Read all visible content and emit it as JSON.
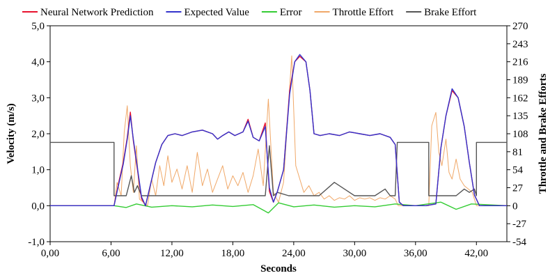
{
  "chart_data": {
    "type": "line",
    "xlabel": "Seconds",
    "ylabel": "Velocity (m/s)",
    "y2label": "Throttle and Brake Efforts",
    "xlim": [
      0,
      45
    ],
    "ylim": [
      -1,
      5
    ],
    "y2lim": [
      -54,
      270
    ],
    "x_ticks": [
      0,
      6,
      12,
      18,
      24,
      30,
      36,
      42
    ],
    "x_tick_labels": [
      "0,00",
      "6,00",
      "12,00",
      "18,00",
      "24,00",
      "30,00",
      "36,00",
      "42,00"
    ],
    "y_ticks": [
      -1,
      0,
      1,
      2,
      3,
      4,
      5
    ],
    "y_tick_labels": [
      "-1,0",
      "0,0",
      "1,0",
      "2,0",
      "3,0",
      "4,0",
      "5,0"
    ],
    "y2_ticks": [
      -54,
      -27,
      0,
      27,
      54,
      81,
      108,
      135,
      162,
      189,
      216,
      243,
      270
    ],
    "y2_tick_labels": [
      "-54",
      "-27",
      "0",
      "27",
      "54",
      "81",
      "108",
      "135",
      "162",
      "189",
      "216",
      "243",
      "270"
    ],
    "grid": false,
    "legend_position": "top",
    "series": [
      {
        "name": "Neural Network Prediction",
        "axis": "left",
        "color": "#e8112d",
        "x": [
          0,
          6.3,
          6.8,
          7.2,
          7.6,
          7.9,
          8.2,
          8.6,
          9.0,
          9.4,
          9.9,
          10.4,
          11.0,
          11.6,
          12.3,
          13.0,
          14.0,
          15.0,
          16.0,
          16.5,
          17.0,
          17.6,
          18.2,
          19.0,
          19.5,
          20.0,
          20.6,
          21.2,
          21.6,
          22.0,
          22.4,
          23.0,
          23.6,
          24.1,
          24.6,
          25.2,
          25.6,
          26.0,
          26.6,
          27.5,
          28.5,
          29.5,
          30.5,
          31.5,
          32.5,
          33.5,
          34.0,
          34.4,
          34.8,
          36.0,
          37.0,
          38.0,
          38.5,
          39.0,
          39.6,
          40.2,
          40.8,
          41.3,
          41.8,
          42.3,
          45.0
        ],
        "y": [
          0,
          0.0,
          0.7,
          1.2,
          1.9,
          2.6,
          1.8,
          1.0,
          0.2,
          0.0,
          0.6,
          1.2,
          1.7,
          1.95,
          2.0,
          1.95,
          2.05,
          2.1,
          2.0,
          1.85,
          1.95,
          2.05,
          1.95,
          2.05,
          2.4,
          1.9,
          1.8,
          2.3,
          0.4,
          0.1,
          0.4,
          1.0,
          3.2,
          4.0,
          4.15,
          4.0,
          3.2,
          2.0,
          1.95,
          2.0,
          1.95,
          2.05,
          2.0,
          1.95,
          2.0,
          1.9,
          1.7,
          0.1,
          0.0,
          0.0,
          0.0,
          0.05,
          1.6,
          2.5,
          3.2,
          3.0,
          2.2,
          1.2,
          0.3,
          0.0,
          0.0
        ]
      },
      {
        "name": "Expected Value",
        "axis": "left",
        "color": "#3333cc",
        "x": [
          0,
          6.3,
          6.8,
          7.2,
          7.6,
          7.9,
          8.2,
          8.6,
          9.0,
          9.4,
          9.9,
          10.4,
          11.0,
          11.6,
          12.3,
          13.0,
          14.0,
          15.0,
          16.0,
          16.5,
          17.0,
          17.6,
          18.2,
          19.0,
          19.5,
          20.0,
          20.6,
          21.2,
          21.6,
          22.0,
          22.4,
          23.0,
          23.6,
          24.1,
          24.6,
          25.2,
          25.6,
          26.0,
          26.6,
          27.5,
          28.5,
          29.5,
          30.5,
          31.5,
          32.5,
          33.5,
          34.0,
          34.4,
          34.8,
          36.0,
          37.0,
          38.0,
          38.5,
          39.0,
          39.6,
          40.2,
          40.8,
          41.3,
          41.8,
          42.3,
          45.0
        ],
        "y": [
          0,
          0.0,
          0.65,
          1.15,
          1.85,
          2.5,
          1.85,
          1.05,
          0.25,
          0.0,
          0.6,
          1.2,
          1.7,
          1.95,
          2.0,
          1.95,
          2.05,
          2.1,
          2.0,
          1.85,
          1.95,
          2.05,
          1.95,
          2.05,
          2.35,
          1.9,
          1.8,
          2.2,
          0.5,
          0.1,
          0.4,
          1.0,
          3.1,
          4.0,
          4.2,
          4.0,
          3.2,
          2.0,
          1.95,
          2.0,
          1.95,
          2.05,
          2.0,
          1.95,
          2.0,
          1.9,
          1.7,
          0.1,
          0.0,
          0.0,
          0.0,
          0.05,
          1.6,
          2.5,
          3.25,
          3.0,
          2.2,
          1.2,
          0.3,
          0.0,
          0.0
        ]
      },
      {
        "name": "Error",
        "axis": "left",
        "color": "#33cc33",
        "x": [
          0,
          6.3,
          7.5,
          8.5,
          10,
          12,
          14,
          16,
          18,
          20,
          21.5,
          22.5,
          24,
          26,
          28,
          30,
          32,
          34,
          36,
          38.5,
          40,
          41.5,
          45
        ],
        "y": [
          0,
          0,
          -0.05,
          0.05,
          -0.04,
          0.0,
          -0.03,
          0.02,
          -0.02,
          0.03,
          -0.2,
          0.08,
          -0.03,
          0.02,
          -0.04,
          0.0,
          -0.03,
          0.05,
          0.0,
          0.1,
          -0.1,
          0.05,
          0
        ]
      },
      {
        "name": "Throttle Effort",
        "axis": "right",
        "color": "#f0a868",
        "x": [
          0,
          6.3,
          6.6,
          7.0,
          7.3,
          7.6,
          7.9,
          8.2,
          8.5,
          8.8,
          9.2,
          9.6,
          10.0,
          10.4,
          10.8,
          11.2,
          11.6,
          12.0,
          12.5,
          13.0,
          13.5,
          14.0,
          14.5,
          15.0,
          15.5,
          16.0,
          16.5,
          17.0,
          17.5,
          18.0,
          18.5,
          19.0,
          19.5,
          20.0,
          20.5,
          21.0,
          21.5,
          22.0,
          22.5,
          23.0,
          23.4,
          23.8,
          24.2,
          24.6,
          25.0,
          25.5,
          26.0,
          26.5,
          27.0,
          27.5,
          28.0,
          28.5,
          29.0,
          29.5,
          30.0,
          30.5,
          31.0,
          31.5,
          32.0,
          32.5,
          33.0,
          33.5,
          34.0,
          34.3,
          36.0,
          37.3,
          37.6,
          38.0,
          38.3,
          38.6,
          39.0,
          39.3,
          39.6,
          40.0,
          40.4,
          40.8,
          41.2,
          41.6,
          42.0,
          45.0
        ],
        "y": [
          0,
          0,
          35,
          15,
          110,
          150,
          60,
          20,
          90,
          10,
          5,
          0,
          40,
          15,
          60,
          30,
          75,
          35,
          55,
          25,
          60,
          20,
          80,
          30,
          55,
          20,
          40,
          60,
          25,
          45,
          30,
          50,
          20,
          45,
          85,
          30,
          160,
          20,
          5,
          35,
          130,
          225,
          60,
          40,
          20,
          30,
          15,
          20,
          10,
          15,
          8,
          12,
          10,
          15,
          8,
          12,
          10,
          12,
          8,
          12,
          10,
          15,
          10,
          0,
          0,
          0,
          120,
          140,
          80,
          60,
          100,
          50,
          40,
          70,
          40,
          30,
          25,
          20,
          0,
          0
        ]
      },
      {
        "name": "Brake Effort",
        "axis": "right",
        "color": "#555555",
        "x": [
          0,
          6.3,
          6.3,
          7.5,
          8.0,
          8.3,
          8.6,
          9.0,
          9.6,
          10.0,
          14.0,
          18.0,
          20.0,
          21.2,
          21.6,
          22.0,
          22.4,
          23.5,
          25.5,
          26.0,
          26.5,
          28.0,
          30.0,
          32.0,
          33.0,
          33.5,
          34.0,
          34.2,
          34.2,
          37.3,
          37.3,
          38.5,
          40.0,
          40.8,
          41.3,
          41.8,
          42.0,
          42.0,
          45.0
        ],
        "y": [
          95,
          95,
          15,
          15,
          45,
          20,
          30,
          15,
          15,
          15,
          15,
          15,
          15,
          15,
          90,
          15,
          20,
          15,
          15,
          15,
          15,
          35,
          15,
          15,
          25,
          15,
          15,
          95,
          95,
          95,
          15,
          15,
          15,
          25,
          20,
          25,
          15,
          95,
          95
        ]
      }
    ]
  }
}
